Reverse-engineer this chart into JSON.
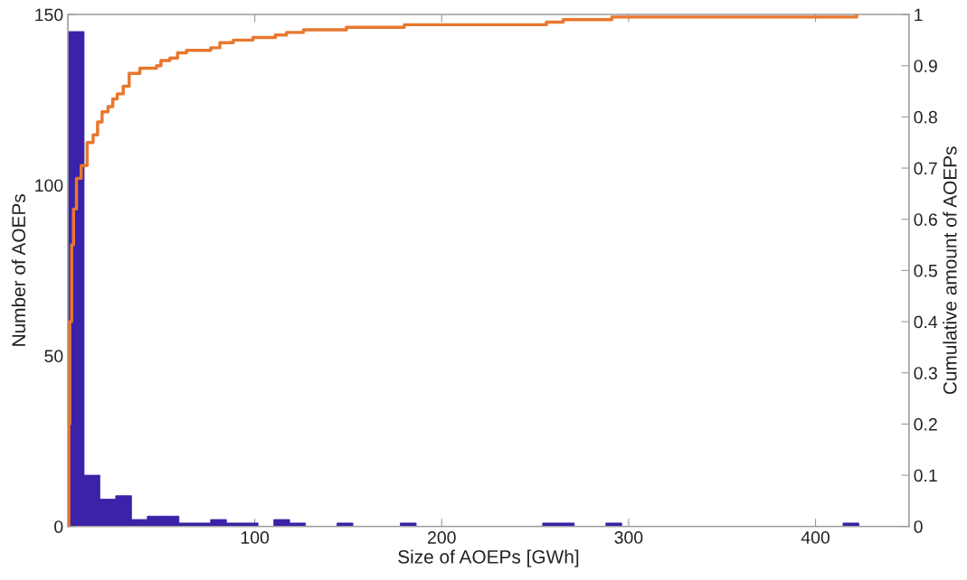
{
  "chart_data": {
    "type": "histogram",
    "xlabel": "Size of AOEPs [GWh]",
    "ylabel": "Number of AOEPs",
    "y2label": "Cumulative amount of AOEPs",
    "xlim": [
      0,
      450
    ],
    "xticks": [
      100,
      200,
      300,
      400
    ],
    "ylim": [
      0,
      150
    ],
    "yticks": [
      0,
      50,
      100,
      150
    ],
    "y2lim": [
      0,
      1
    ],
    "y2ticks": [
      0,
      0.1,
      0.2,
      0.3,
      0.4,
      0.5,
      0.6,
      0.7,
      0.8,
      0.9,
      1
    ],
    "grid": false,
    "series": [
      {
        "color": "#3b22a8",
        "bins": [
          0.2,
          8.66,
          17.12,
          25.58,
          34.04,
          42.5,
          50.96,
          59.42,
          67.88,
          76.34,
          84.8,
          93.26,
          101.72,
          110.18,
          118.64,
          127.1,
          135.56,
          144.02,
          152.48,
          160.94,
          169.4,
          177.86,
          186.32,
          194.78,
          203.24,
          211.7,
          220.16,
          228.62,
          237.08,
          245.54,
          254,
          262.46,
          270.92,
          279.38,
          287.84,
          296.3,
          304.76,
          313.22,
          321.68,
          330.14,
          338.6,
          347.06,
          355.52,
          363.98,
          372.44,
          380.9,
          389.36,
          397.82,
          406.28,
          414.74,
          423.2
        ],
        "values": [
          145,
          15,
          8,
          9,
          2,
          3,
          3,
          1,
          1,
          2,
          1,
          1,
          0,
          2,
          1,
          0,
          0,
          1,
          0,
          0,
          0,
          1,
          0,
          0,
          0,
          0,
          0,
          0,
          0,
          0,
          1,
          1,
          0,
          0,
          1,
          0,
          0,
          0,
          0,
          0,
          0,
          0,
          0,
          0,
          0,
          0,
          0,
          0,
          0,
          1
        ]
      },
      {
        "type": "step",
        "axis": "y2",
        "color": "#e8772e",
        "x": [
          0,
          0.5,
          1,
          2,
          3,
          4.6,
          7.1,
          10.3,
          13.5,
          15.9,
          18.3,
          21.5,
          24,
          26.4,
          29.6,
          32.8,
          38.5,
          47.4,
          49.8,
          54.6,
          58.7,
          63.5,
          76.4,
          81.3,
          88.5,
          99,
          111,
          117,
          126,
          149,
          180,
          256,
          265,
          291,
          422
        ],
        "values": [
          0,
          0.2,
          0.4,
          0.55,
          0.62,
          0.68,
          0.705,
          0.75,
          0.765,
          0.79,
          0.81,
          0.82,
          0.835,
          0.845,
          0.86,
          0.885,
          0.895,
          0.9,
          0.91,
          0.915,
          0.925,
          0.93,
          0.935,
          0.945,
          0.95,
          0.955,
          0.96,
          0.965,
          0.97,
          0.975,
          0.98,
          0.985,
          0.99,
          0.995,
          1
        ]
      }
    ]
  }
}
